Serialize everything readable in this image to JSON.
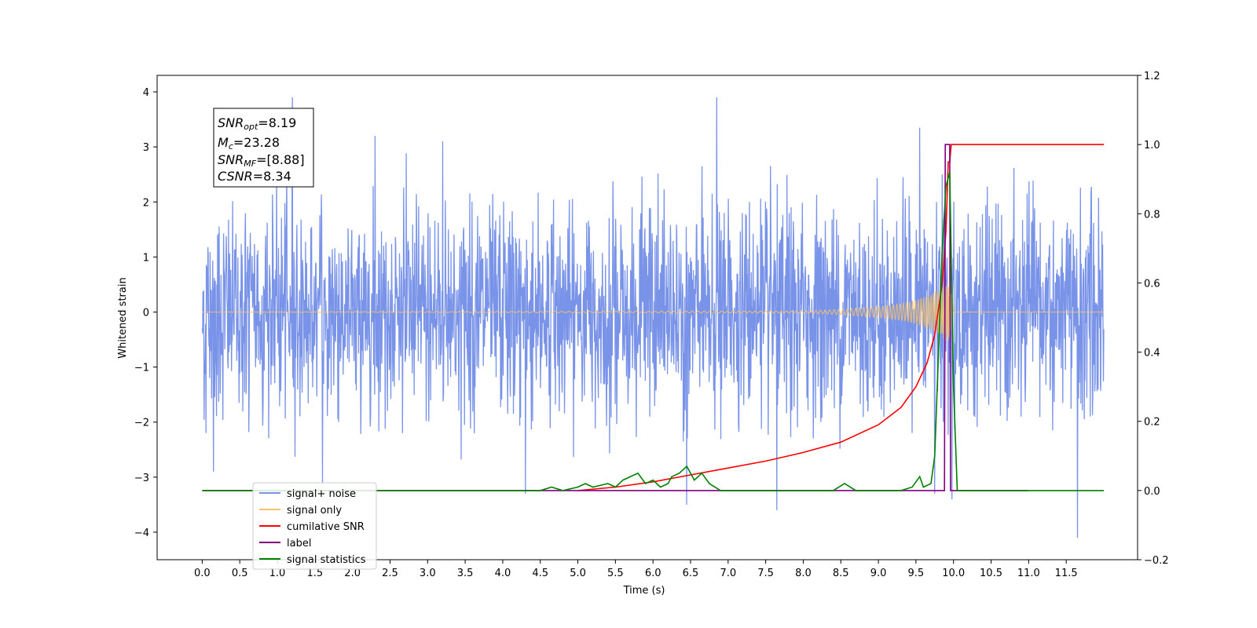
{
  "chart_data": {
    "type": "line",
    "xlabel": "Time (s)",
    "ylabel": "Whitened strain",
    "xlim": [
      -0.6,
      12.45
    ],
    "ylim": [
      -4.5,
      4.3
    ],
    "y2lim": [
      -0.2,
      1.2
    ],
    "grid": false,
    "legend_position": "lower-left",
    "x_ticks": [
      "0.0",
      "0.5",
      "1.0",
      "1.5",
      "2.0",
      "2.5",
      "3.0",
      "3.5",
      "4.0",
      "4.5",
      "5.0",
      "5.5",
      "6.0",
      "6.5",
      "7.0",
      "7.5",
      "8.0",
      "8.5",
      "9.0",
      "9.5",
      "10.0",
      "10.5",
      "11.0",
      "11.5"
    ],
    "y_ticks": [
      "4",
      "3",
      "2",
      "1",
      "0",
      "−1",
      "−2",
      "−3",
      "−4"
    ],
    "y2_ticks": [
      "1.2",
      "1.0",
      "0.8",
      "0.6",
      "0.4",
      "0.2",
      "0.0",
      "−0.2"
    ],
    "annotation": {
      "snr_opt": "=8.19",
      "mc": "=23.28",
      "snr_mf": "=[8.88]",
      "csnr": "=8.34"
    },
    "legend": [
      {
        "label": "signal+ noise",
        "color": "#7993e8"
      },
      {
        "label": "signal only",
        "color": "#f5c26b"
      },
      {
        "label": "cumilative SNR",
        "color": "#ff0000"
      },
      {
        "label": "label",
        "color": "#800080"
      },
      {
        "label": "signal statistics",
        "color": "#008000"
      }
    ],
    "series": [
      {
        "name": "signal+ noise",
        "axis": "left",
        "color": "#7993e8",
        "x_range": [
          0.0,
          12.0
        ],
        "typical_amplitude": [
          -1.9,
          2.0
        ],
        "spikes": [
          {
            "x": 0.05,
            "y": -2.2
          },
          {
            "x": 0.15,
            "y": -2.9
          },
          {
            "x": 1.2,
            "y": 3.9
          },
          {
            "x": 1.6,
            "y": -3.1
          },
          {
            "x": 2.3,
            "y": 3.2
          },
          {
            "x": 3.2,
            "y": 3.1
          },
          {
            "x": 4.3,
            "y": -3.3
          },
          {
            "x": 6.45,
            "y": -3.5
          },
          {
            "x": 6.85,
            "y": 3.9
          },
          {
            "x": 7.65,
            "y": -3.6
          },
          {
            "x": 9.55,
            "y": 3.35
          },
          {
            "x": 9.75,
            "y": -3.3
          },
          {
            "x": 9.98,
            "y": -3.4
          },
          {
            "x": 11.65,
            "y": -4.1
          }
        ]
      },
      {
        "name": "signal only",
        "axis": "left",
        "color": "#f5c26b",
        "x": [
          0.0,
          8.0,
          8.5,
          9.0,
          9.3,
          9.5,
          9.7,
          9.85,
          9.95,
          10.0,
          12.0
        ],
        "envelope": [
          0.0,
          0.02,
          0.05,
          0.1,
          0.15,
          0.22,
          0.32,
          0.45,
          0.6,
          0.0,
          0.0
        ]
      },
      {
        "name": "cumilative SNR",
        "axis": "right",
        "color": "#ff0000",
        "x": [
          5.0,
          5.5,
          6.0,
          6.5,
          7.0,
          7.5,
          8.0,
          8.5,
          9.0,
          9.3,
          9.5,
          9.65,
          9.75,
          9.85,
          9.9,
          9.93,
          9.95,
          9.97,
          12.0
        ],
        "values": [
          0.0,
          0.01,
          0.025,
          0.045,
          0.065,
          0.085,
          0.11,
          0.14,
          0.19,
          0.24,
          0.3,
          0.37,
          0.45,
          0.6,
          0.75,
          0.95,
          0.95,
          1.0,
          1.0
        ]
      },
      {
        "name": "label",
        "axis": "right",
        "color": "#800080",
        "x": [
          0.0,
          9.88,
          9.89,
          9.95,
          9.96,
          11.0
        ],
        "values": [
          0.0,
          0.0,
          1.0,
          1.0,
          0.0,
          0.0
        ]
      },
      {
        "name": "signal statistics",
        "axis": "right",
        "color": "#008000",
        "x": [
          0.0,
          4.5,
          4.65,
          4.8,
          5.0,
          5.1,
          5.2,
          5.4,
          5.5,
          5.6,
          5.8,
          5.9,
          6.0,
          6.1,
          6.2,
          6.25,
          6.35,
          6.45,
          6.55,
          6.65,
          6.75,
          6.9,
          7.1,
          8.4,
          8.55,
          8.7,
          9.3,
          9.45,
          9.55,
          9.6,
          9.7,
          9.75,
          9.8,
          9.85,
          9.9,
          9.95,
          10.0,
          10.05,
          12.0
        ],
        "values": [
          0.0,
          0.0,
          0.01,
          0.0,
          0.01,
          0.02,
          0.01,
          0.02,
          0.01,
          0.03,
          0.05,
          0.02,
          0.03,
          0.01,
          0.02,
          0.04,
          0.05,
          0.07,
          0.03,
          0.05,
          0.02,
          0.0,
          0.0,
          0.0,
          0.02,
          0.0,
          0.0,
          0.01,
          0.04,
          0.01,
          0.02,
          0.1,
          0.4,
          0.7,
          0.88,
          0.92,
          0.3,
          0.0,
          0.0
        ]
      }
    ]
  }
}
